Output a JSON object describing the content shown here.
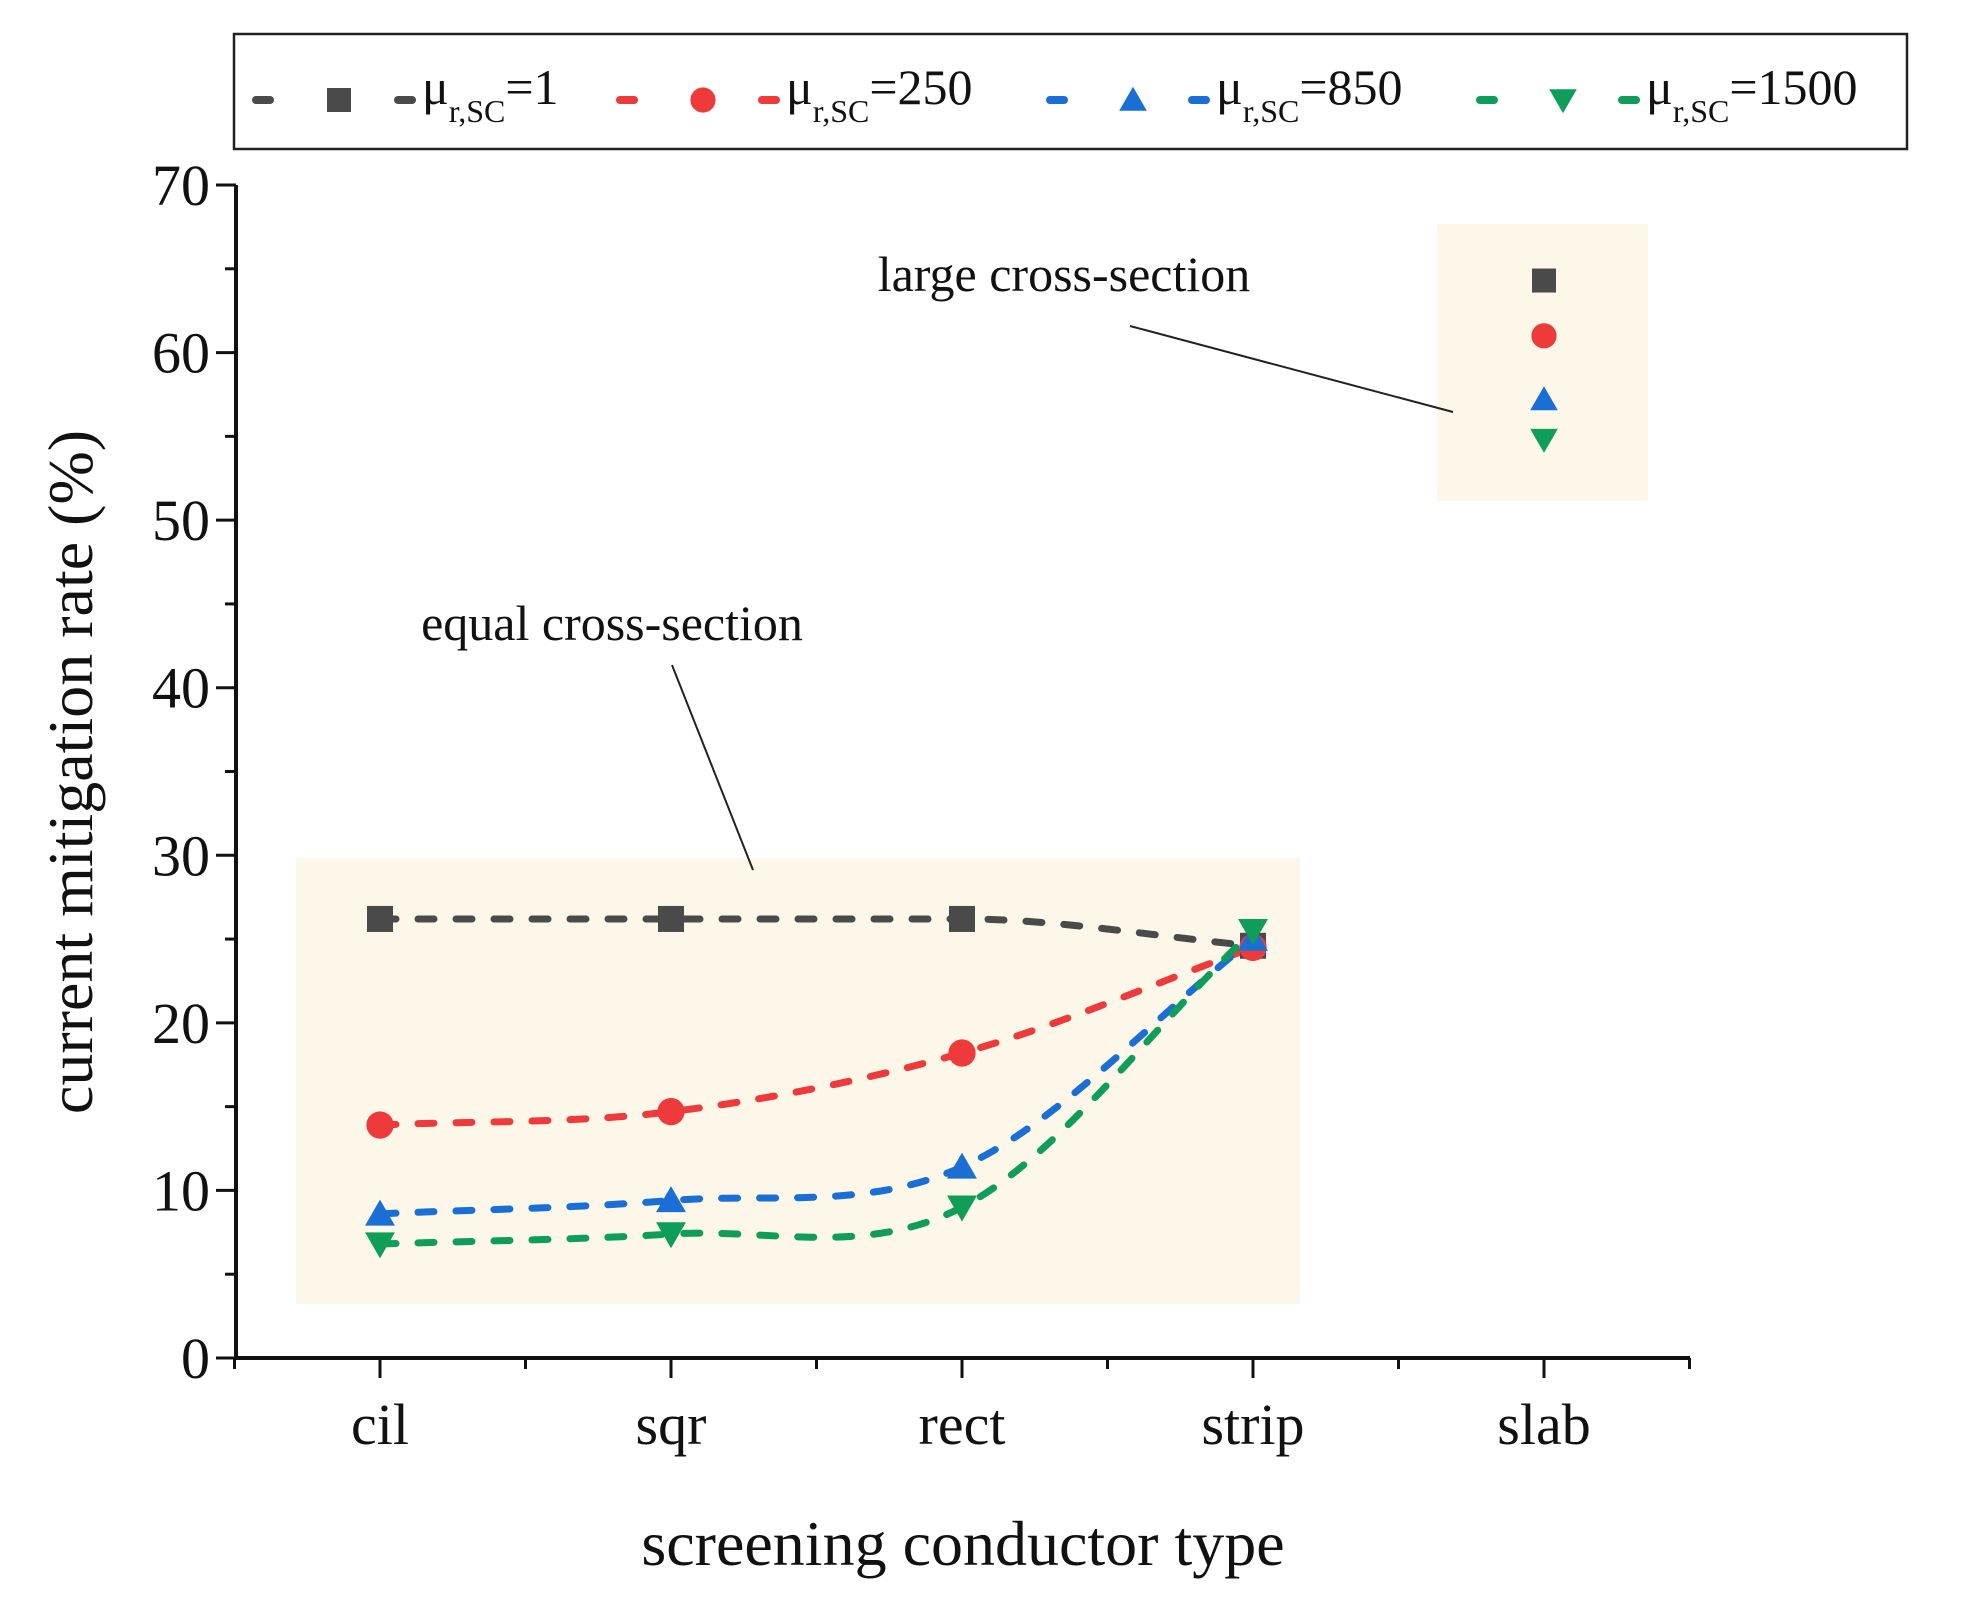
{
  "chart_data": {
    "type": "scatter",
    "title": "",
    "xlabel": "screening conductor type",
    "ylabel": "current mitigation rate (%)",
    "categories": [
      "cil",
      "sqr",
      "rect",
      "strip",
      "slab"
    ],
    "ylim": [
      0,
      70
    ],
    "yticks": [
      0,
      10,
      20,
      30,
      40,
      50,
      60,
      70
    ],
    "legend_position": "top",
    "series": [
      {
        "name": "μr,SC=1",
        "mu_base": "μ",
        "mu_sub": "r,SC",
        "mu_val": "=1",
        "color": "#4a4a4a",
        "marker": "square",
        "values": [
          26.2,
          26.2,
          26.2,
          24.6,
          64.3
        ]
      },
      {
        "name": "μr,SC=250",
        "mu_base": "μ",
        "mu_sub": "r,SC",
        "mu_val": "=250",
        "color": "#ee3a3a",
        "marker": "circle",
        "values": [
          13.9,
          14.7,
          18.2,
          24.5,
          61.0
        ]
      },
      {
        "name": "μr,SC=850",
        "mu_base": "μ",
        "mu_sub": "r,SC",
        "mu_val": "=850",
        "color": "#1a6fd6",
        "marker": "triangle-up",
        "values": [
          8.6,
          9.4,
          11.4,
          25.0,
          57.2
        ]
      },
      {
        "name": "μr,SC=1500",
        "mu_base": "μ",
        "mu_sub": "r,SC",
        "mu_val": "=1500",
        "color": "#0f9e5a",
        "marker": "triangle-down",
        "values": [
          6.8,
          7.4,
          9.0,
          25.5,
          54.8
        ]
      }
    ],
    "annotations": [
      {
        "text": "equal cross-section",
        "points_to": "cil–strip group"
      },
      {
        "text": "large cross-section",
        "points_to": "slab group"
      }
    ]
  }
}
